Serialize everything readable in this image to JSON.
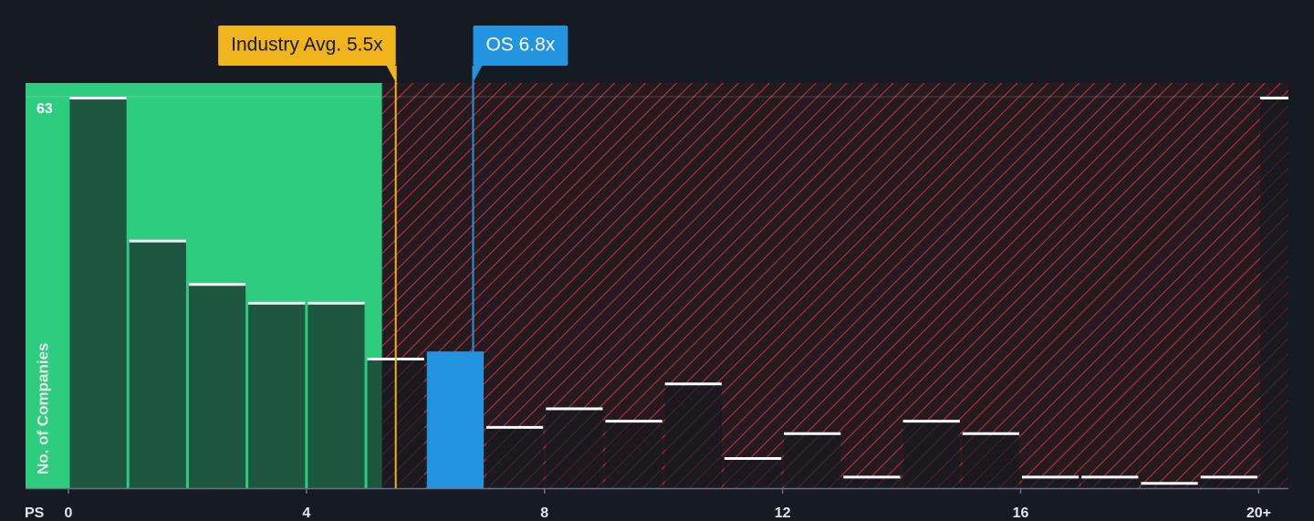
{
  "chart_data": {
    "type": "histogram",
    "x_label": "PS",
    "y_label": "No. of Companies",
    "bins": [
      0,
      1,
      2,
      3,
      4,
      5,
      6,
      7,
      8,
      9,
      10,
      11,
      12,
      13,
      14,
      15,
      16,
      17,
      18,
      19,
      20,
      21
    ],
    "values": [
      63,
      40,
      33,
      30,
      30,
      21,
      22,
      10,
      13,
      11,
      17,
      5,
      9,
      2,
      11,
      9,
      2,
      2,
      1,
      2,
      63
    ],
    "highlight": {
      "index": 6,
      "color": "#2394e0"
    },
    "shade_good_max": 5.27,
    "xlim": [
      -0.72,
      20.5
    ],
    "xticks": [
      0,
      4,
      8,
      12,
      16,
      {
        "value": 20,
        "label": "20+"
      }
    ],
    "ylim": [
      0,
      65.2
    ],
    "yticks": [
      63
    ],
    "grid": true,
    "annotations": [
      {
        "label": "Industry Avg. 5.5x",
        "value": 5.5,
        "color": "#f0b41c"
      },
      {
        "label": "OS 6.8x",
        "value": 6.8,
        "color": "#2394e0"
      }
    ]
  }
}
